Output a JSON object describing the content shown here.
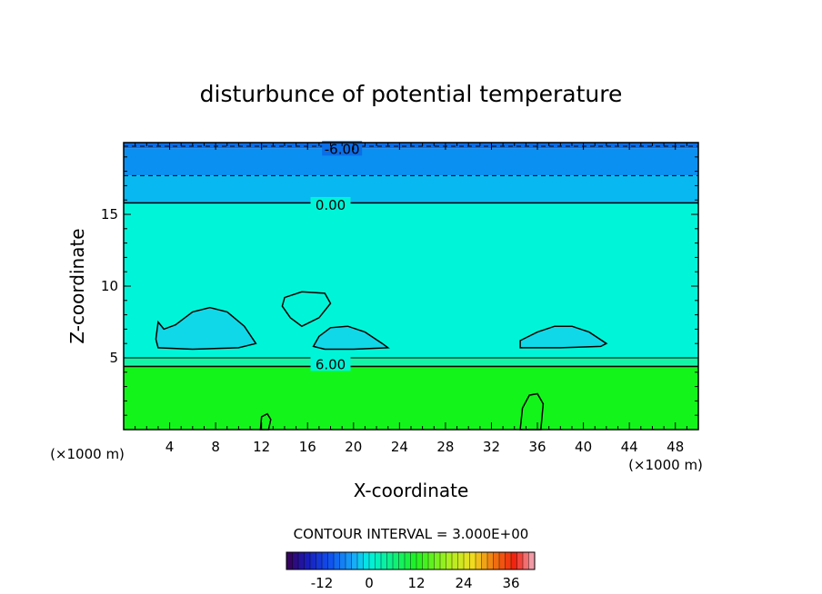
{
  "chart_data": {
    "type": "contour",
    "title": "disturbunce of potential temperature",
    "xlabel": "X-coordinate",
    "ylabel": "Z-coordinate",
    "x_unit": "(×1000 m)",
    "y_unit": "(×1000 m)",
    "xlim": [
      0,
      50
    ],
    "ylim": [
      0,
      20
    ],
    "xticks": [
      4,
      8,
      12,
      16,
      20,
      24,
      28,
      32,
      36,
      40,
      44,
      48
    ],
    "yticks": [
      5,
      10,
      15
    ],
    "contour_interval_label": "CONTOUR INTERVAL = 3.000E+00",
    "contour_labels": [
      {
        "text": "-6.00",
        "x": 19,
        "z": 19.6
      },
      {
        "text": "0.00",
        "x": 18,
        "z": 15.7
      },
      {
        "text": "6.00",
        "x": 18,
        "z": 4.6
      }
    ],
    "fill_regions": [
      {
        "value_range": [
          6,
          9
        ],
        "z_range": [
          0,
          4.5
        ],
        "color": "#13f51a"
      },
      {
        "value_range": [
          3,
          6
        ],
        "z_range": [
          4.5,
          5.0
        ],
        "color": "#12f5a6"
      },
      {
        "value_range": [
          0,
          3
        ],
        "z_range": [
          5.0,
          15.8
        ],
        "color": "#00f5d8"
      },
      {
        "value_range": [
          -3,
          0
        ],
        "z_range": [
          15.8,
          17.7
        ],
        "color": "#08b8f0"
      },
      {
        "value_range": [
          -6,
          -3
        ],
        "z_range": [
          17.7,
          19.6
        ],
        "color": "#0a90f0"
      },
      {
        "value_range": [
          -9,
          -6
        ],
        "z_range": [
          19.6,
          20
        ],
        "color": "#0a6ee8"
      }
    ],
    "colorbar": {
      "ticks": [
        "-12",
        "0",
        "12",
        "24",
        "36"
      ],
      "min": -21,
      "max": 42,
      "stops": [
        {
          "v": -21,
          "c": "#3a0050"
        },
        {
          "v": -16,
          "c": "#1a1ab8"
        },
        {
          "v": -10,
          "c": "#1050f0"
        },
        {
          "v": -4,
          "c": "#18a8f8"
        },
        {
          "v": 0,
          "c": "#00f0e0"
        },
        {
          "v": 6,
          "c": "#10f080"
        },
        {
          "v": 12,
          "c": "#20f020"
        },
        {
          "v": 20,
          "c": "#a8f020"
        },
        {
          "v": 26,
          "c": "#f0e020"
        },
        {
          "v": 32,
          "c": "#f07010"
        },
        {
          "v": 37,
          "c": "#f02010"
        },
        {
          "v": 42,
          "c": "#f0b0c0"
        }
      ]
    }
  }
}
